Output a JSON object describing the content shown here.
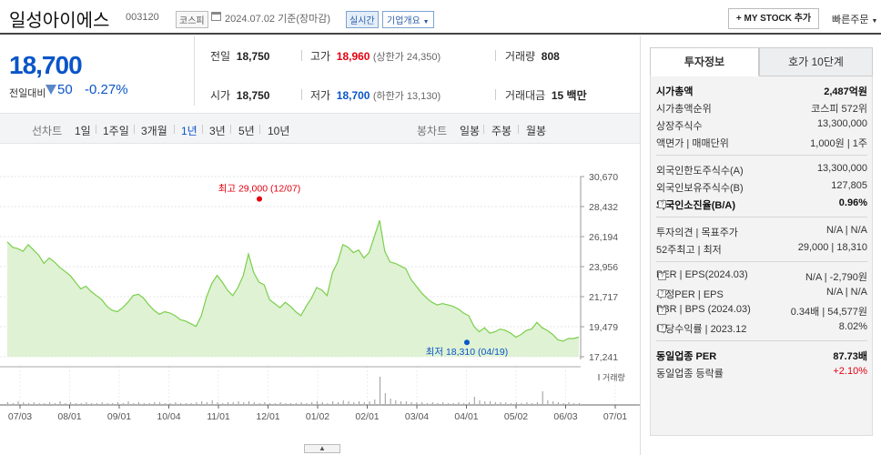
{
  "header": {
    "stock_name": "일성아이에스",
    "stock_code": "003120",
    "market_badge": "코스피",
    "date_text": "2024.07.02 기준(장마감)",
    "realtime_label": "실시간",
    "company_overview_label": "기업개요",
    "mystock_label": "+ MY STOCK 추가",
    "quick_order_label": "빠른주문"
  },
  "price": {
    "current": "18,700",
    "change_label": "전일대비",
    "change_value": "50",
    "change_pct": "-0.27%"
  },
  "quotes": {
    "prev_label": "전일",
    "prev_value": "18,750",
    "high_label": "고가",
    "high_value": "18,960",
    "upper_limit": "(상한가 24,350)",
    "volume_label": "거래량",
    "volume_value": "808",
    "open_label": "시가",
    "open_value": "18,750",
    "low_label": "저가",
    "low_value": "18,700",
    "lower_limit": "(하한가 13,130)",
    "amount_label": "거래대금",
    "amount_value": "15 백만"
  },
  "tabbar": {
    "line_chart_label": "선차트",
    "periods": [
      "1일",
      "1주일",
      "3개월",
      "1년",
      "3년",
      "5년",
      "10년"
    ],
    "active_period": "1년",
    "candle_label": "봉차트",
    "candles": [
      "일봉",
      "주봉",
      "월봉"
    ]
  },
  "side": {
    "tab_invest": "투자정보",
    "tab_hoga": "호가 10단계",
    "rows_1": [
      {
        "label": "시가총액",
        "value": "2,487억원",
        "bold": true
      },
      {
        "label": "시가총액순위",
        "value": "코스피 572위"
      },
      {
        "label": "상장주식수",
        "value": "13,300,000"
      },
      {
        "label": "액면가 | 매매단위",
        "value": "1,000원 | 1주"
      }
    ],
    "rows_2": [
      {
        "label": "외국인한도주식수(A)",
        "value": "13,300,000"
      },
      {
        "label": "외국인보유주식수(B)",
        "value": "127,805"
      },
      {
        "label": "외국인소진율(B/A)",
        "value": "0.96%",
        "bold": true
      }
    ],
    "rows_3": [
      {
        "label": "투자의견 | 목표주가",
        "value": "N/A | N/A"
      },
      {
        "label": "52주최고 | 최저",
        "value": "29,000 | 18,310"
      }
    ],
    "rows_4": [
      {
        "label": "PER | EPS(2024.03)",
        "value": "N/A | -2,790원"
      },
      {
        "label": "추정PER | EPS",
        "value": "N/A | N/A"
      },
      {
        "label": "PBR | BPS (2024.03)",
        "value": "0.34배 | 54,577원"
      },
      {
        "label": "배당수익률 | 2023.12",
        "value": "8.02%"
      }
    ],
    "rows_5": [
      {
        "label": "동일업종 PER",
        "value": "87.73배",
        "bold": true
      },
      {
        "label": "동일업종 등락률",
        "value": "+2.10%"
      }
    ]
  },
  "chart_data": {
    "type": "area",
    "y_ticks": [
      "30,670",
      "28,432",
      "26,194",
      "23,956",
      "21,717",
      "19,479",
      "17,241"
    ],
    "ylim": [
      17241,
      30670
    ],
    "x_ticks": [
      "07/03",
      "08/01",
      "09/01",
      "10/04",
      "11/01",
      "12/01",
      "01/02",
      "02/01",
      "03/04",
      "04/01",
      "05/02",
      "06/03",
      "07/01"
    ],
    "high_annotation": "최고 29,000 (12/07)",
    "low_annotation": "최저 18,310 (04/19)",
    "volume_label": "거래량",
    "high_value": 29000,
    "low_value": 18310,
    "series": [
      {
        "values": [
          25800,
          25400,
          25300,
          25100,
          25600,
          25200,
          24800,
          24200,
          24600,
          24300,
          23900,
          23600,
          23300,
          22800,
          22300,
          22500,
          22100,
          21800,
          21500,
          21000,
          20700,
          20600,
          20900,
          21300,
          21800,
          21900,
          21600,
          21100,
          20700,
          20400,
          20600,
          20500,
          20300,
          20000,
          19900,
          19700,
          19500,
          20300,
          21700,
          22700,
          23300,
          22800,
          22200,
          21800,
          22400,
          23300,
          24900,
          23500,
          22800,
          22600,
          21500,
          21200,
          20900,
          21300,
          21000,
          20600,
          20300,
          21000,
          21600,
          22400,
          22200,
          21800,
          23500,
          24300,
          25600,
          25400,
          25000,
          25200,
          24600,
          25000,
          26200,
          27400,
          25100,
          24300,
          24200,
          24000,
          23800,
          23000,
          22500,
          22000,
          21600,
          21300,
          21100,
          21200,
          21100,
          21000,
          20800,
          20500,
          20300,
          19500,
          19100,
          19400,
          19000,
          19100,
          19300,
          19200,
          19000,
          18700,
          18900,
          19200,
          19300,
          19800,
          19400,
          19200,
          18900,
          18500,
          18400,
          18600,
          18600,
          18700
        ]
      }
    ]
  }
}
